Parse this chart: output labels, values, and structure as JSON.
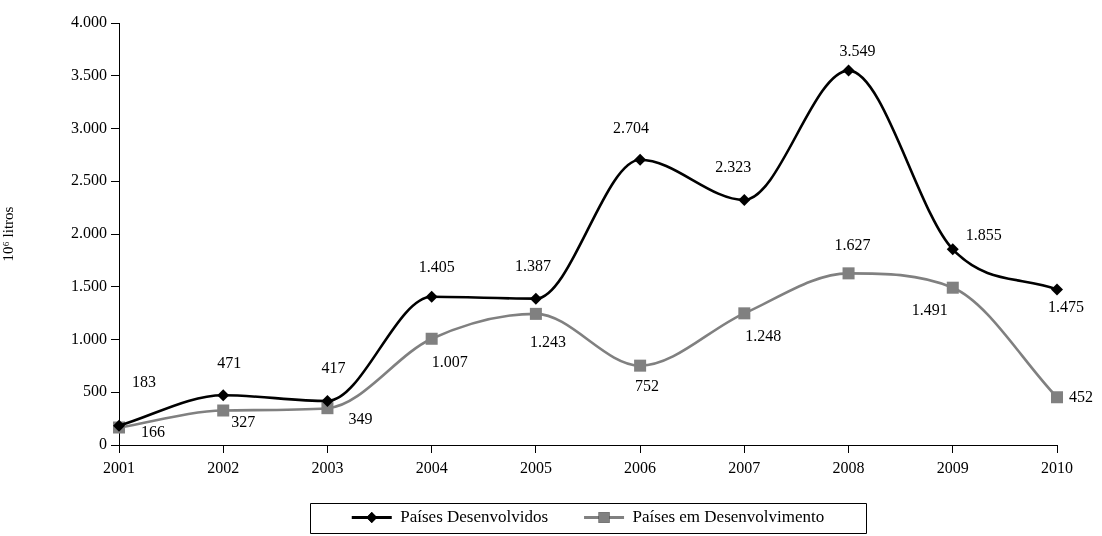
{
  "chart_data": {
    "type": "line",
    "ylabel": "10⁶ litros",
    "categories": [
      "2001",
      "2002",
      "2003",
      "2004",
      "2005",
      "2006",
      "2007",
      "2008",
      "2009",
      "2010"
    ],
    "series": [
      {
        "name": "Países Desenvolvidos",
        "color": "#000000",
        "marker": "diamond",
        "values": [
          183,
          471,
          417,
          1405,
          1387,
          2704,
          2323,
          3549,
          1855,
          1475
        ],
        "value_labels": [
          "183",
          "471",
          "417",
          "1.405",
          "1.387",
          "2.704",
          "2.323",
          "3.549",
          "1.855",
          "1.475"
        ]
      },
      {
        "name": "Países em Desenvolvimento",
        "color": "#808080",
        "marker": "square",
        "values": [
          166,
          327,
          349,
          1007,
          1243,
          752,
          1248,
          1627,
          1491,
          452
        ],
        "value_labels": [
          "166",
          "327",
          "349",
          "1.007",
          "1.243",
          "752",
          "1.248",
          "1.627",
          "1.491",
          "452"
        ]
      }
    ],
    "ylim": [
      0,
      4000
    ],
    "yticks": [
      0,
      500,
      {
        "value": 1000,
        "label": "1.000"
      },
      {
        "value": 1500,
        "label": "1.500"
      },
      {
        "value": 2000,
        "label": "2.000"
      },
      {
        "value": 2500,
        "label": "2.500"
      },
      {
        "value": 3000,
        "label": "3.000"
      },
      {
        "value": 3500,
        "label": "3.500"
      },
      {
        "value": 4000,
        "label": "4.000"
      }
    ],
    "line_style": "solid",
    "legend": "bottom"
  }
}
